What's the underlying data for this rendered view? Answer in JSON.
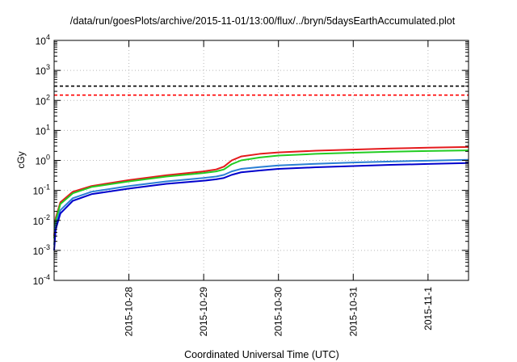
{
  "chart_data": {
    "type": "line",
    "title": "/data/run/goesPlots/archive/2015-11-01/13:00/flux/../bryn/5daysEarthAccumulated.plot",
    "xlabel": "Coordinated Universal Time (UTC)",
    "ylabel": "cGy",
    "y_scale": "log",
    "ylim": [
      0.0001,
      10000
    ],
    "xlim": [
      "2015-10-27T00:00",
      "2015-11-01T13:00"
    ],
    "grid": true,
    "x_ticks": [
      "2015-10-28",
      "2015-10-29",
      "2015-10-30",
      "2015-10-31",
      "2015-11-1"
    ],
    "y_ticks": [
      {
        "base": "10",
        "exp": "-4"
      },
      {
        "base": "10",
        "exp": "-3"
      },
      {
        "base": "10",
        "exp": "-2"
      },
      {
        "base": "10",
        "exp": "-1"
      },
      {
        "base": "10",
        "exp": "0"
      },
      {
        "base": "10",
        "exp": "1"
      },
      {
        "base": "10",
        "exp": "2"
      },
      {
        "base": "10",
        "exp": "3"
      },
      {
        "base": "10",
        "exp": "4"
      }
    ],
    "reference_lines": [
      {
        "y": 300,
        "color": "#000000",
        "style": "dashed"
      },
      {
        "y": 150,
        "color": "#ff0000",
        "style": "dashed"
      }
    ],
    "series": [
      {
        "color": "#e41a1c",
        "x": [
          "2015-10-27T00:00",
          "2015-10-27T00:30",
          "2015-10-27T02:00",
          "2015-10-27T06:00",
          "2015-10-27T12:00",
          "2015-10-28T00:00",
          "2015-10-28T12:00",
          "2015-10-29T00:00",
          "2015-10-29T04:00",
          "2015-10-29T06:30",
          "2015-10-29T09:00",
          "2015-10-29T12:00",
          "2015-10-29T18:00",
          "2015-10-30T00:00",
          "2015-10-30T12:00",
          "2015-10-31T00:00",
          "2015-10-31T12:00",
          "2015-11-01T00:00",
          "2015-11-01T13:00"
        ],
        "y": [
          0.003,
          0.012,
          0.04,
          0.09,
          0.14,
          0.22,
          0.32,
          0.43,
          0.5,
          0.62,
          1.0,
          1.35,
          1.65,
          1.85,
          2.1,
          2.3,
          2.5,
          2.65,
          2.8
        ]
      },
      {
        "color": "#22cc22",
        "x": [
          "2015-10-27T00:00",
          "2015-10-27T00:30",
          "2015-10-27T02:00",
          "2015-10-27T06:00",
          "2015-10-27T12:00",
          "2015-10-28T00:00",
          "2015-10-28T12:00",
          "2015-10-29T00:00",
          "2015-10-29T04:00",
          "2015-10-29T06:30",
          "2015-10-29T09:00",
          "2015-10-29T12:00",
          "2015-10-29T18:00",
          "2015-10-30T00:00",
          "2015-10-30T12:00",
          "2015-10-31T00:00",
          "2015-10-31T12:00",
          "2015-11-01T00:00",
          "2015-11-01T13:00"
        ],
        "y": [
          0.0025,
          0.01,
          0.035,
          0.08,
          0.13,
          0.2,
          0.29,
          0.38,
          0.43,
          0.5,
          0.75,
          1.0,
          1.25,
          1.45,
          1.65,
          1.8,
          1.95,
          2.05,
          2.15
        ]
      },
      {
        "color": "#2a7fd4",
        "x": [
          "2015-10-27T00:00",
          "2015-10-27T00:30",
          "2015-10-27T02:00",
          "2015-10-27T06:00",
          "2015-10-27T12:00",
          "2015-10-28T00:00",
          "2015-10-28T12:00",
          "2015-10-29T00:00",
          "2015-10-29T04:00",
          "2015-10-29T06:30",
          "2015-10-29T09:00",
          "2015-10-29T12:00",
          "2015-10-29T18:00",
          "2015-10-30T00:00",
          "2015-10-30T12:00",
          "2015-10-31T00:00",
          "2015-10-31T12:00",
          "2015-11-01T00:00",
          "2015-11-01T13:00"
        ],
        "y": [
          0.0015,
          0.007,
          0.022,
          0.055,
          0.09,
          0.14,
          0.2,
          0.26,
          0.29,
          0.33,
          0.43,
          0.52,
          0.6,
          0.68,
          0.77,
          0.85,
          0.92,
          0.98,
          1.05
        ]
      },
      {
        "color": "#0000cc",
        "x": [
          "2015-10-27T00:00",
          "2015-10-27T00:30",
          "2015-10-27T02:00",
          "2015-10-27T06:00",
          "2015-10-27T12:00",
          "2015-10-28T00:00",
          "2015-10-28T12:00",
          "2015-10-29T00:00",
          "2015-10-29T04:00",
          "2015-10-29T06:30",
          "2015-10-29T09:00",
          "2015-10-29T12:00",
          "2015-10-29T18:00",
          "2015-10-30T00:00",
          "2015-10-30T12:00",
          "2015-10-31T00:00",
          "2015-10-31T12:00",
          "2015-11-01T00:00",
          "2015-11-01T13:00"
        ],
        "y": [
          0.001,
          0.005,
          0.017,
          0.045,
          0.075,
          0.115,
          0.165,
          0.21,
          0.235,
          0.26,
          0.33,
          0.4,
          0.46,
          0.52,
          0.59,
          0.65,
          0.71,
          0.76,
          0.82
        ]
      }
    ]
  }
}
